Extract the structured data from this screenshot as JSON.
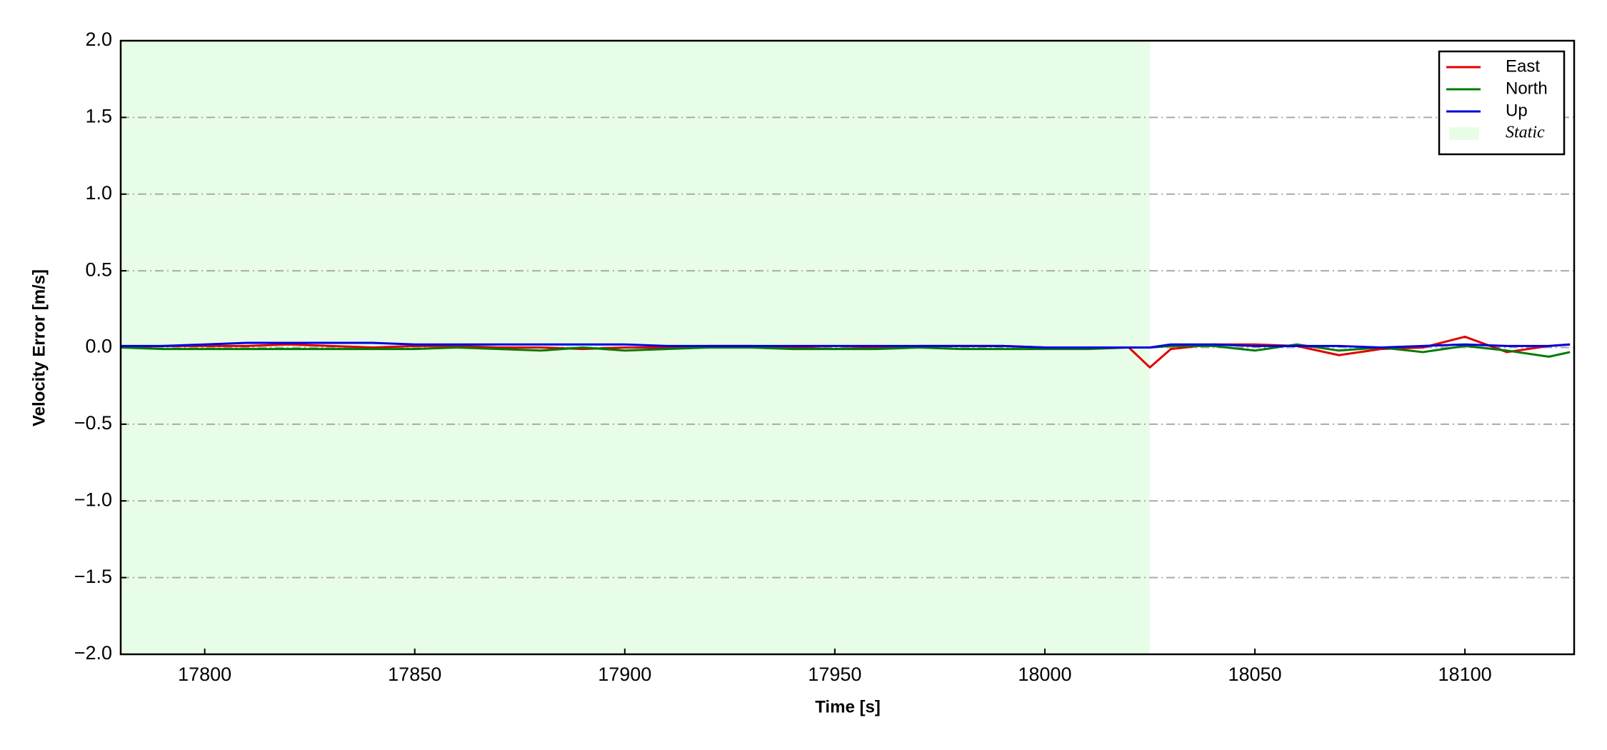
{
  "chart_data": {
    "type": "line",
    "x_label": "Time [s]",
    "y_label": "Velocity Error [m/s]",
    "x": [
      17780,
      17790,
      17800,
      17810,
      17820,
      17830,
      17840,
      17850,
      17860,
      17870,
      17880,
      17890,
      17900,
      17910,
      17920,
      17930,
      17940,
      17950,
      17960,
      17970,
      17980,
      17990,
      18000,
      18010,
      18020,
      18025,
      18030,
      18040,
      18050,
      18060,
      18070,
      18080,
      18090,
      18100,
      18110,
      18120,
      18125
    ],
    "series": [
      {
        "name": "East",
        "color": "#e00000",
        "values": [
          0.0,
          0.01,
          0.01,
          0.01,
          0.02,
          0.01,
          0.0,
          0.01,
          0.01,
          0.0,
          0.0,
          -0.01,
          0.0,
          0.0,
          0.01,
          0.01,
          0.0,
          -0.01,
          0.0,
          0.01,
          0.01,
          0.01,
          0.0,
          0.0,
          0.0,
          -0.13,
          -0.01,
          0.02,
          0.02,
          0.01,
          -0.05,
          -0.01,
          0.0,
          0.07,
          -0.03,
          0.01,
          0.02
        ]
      },
      {
        "name": "North",
        "color": "#007a00",
        "values": [
          0.0,
          -0.01,
          -0.01,
          -0.01,
          -0.01,
          -0.01,
          -0.01,
          -0.01,
          0.0,
          -0.01,
          -0.02,
          0.0,
          -0.02,
          -0.01,
          0.0,
          0.0,
          -0.01,
          -0.01,
          -0.01,
          0.0,
          -0.01,
          -0.01,
          -0.01,
          -0.01,
          0.0,
          0.0,
          0.01,
          0.01,
          -0.02,
          0.02,
          -0.02,
          0.0,
          -0.03,
          0.01,
          -0.02,
          -0.06,
          -0.03
        ]
      },
      {
        "name": "Up",
        "color": "#0000e0",
        "values": [
          0.01,
          0.01,
          0.02,
          0.03,
          0.03,
          0.03,
          0.03,
          0.02,
          0.02,
          0.02,
          0.02,
          0.02,
          0.02,
          0.01,
          0.01,
          0.01,
          0.01,
          0.01,
          0.01,
          0.01,
          0.01,
          0.01,
          0.0,
          0.0,
          0.0,
          0.0,
          0.02,
          0.02,
          0.01,
          0.01,
          0.01,
          0.0,
          0.01,
          0.02,
          0.01,
          0.01,
          0.02
        ]
      }
    ],
    "static": {
      "name": "Static",
      "color": "#e8fde8",
      "range": [
        17780,
        18025
      ]
    },
    "xlim": [
      17780,
      18126
    ],
    "xticks": [
      17800,
      17850,
      17900,
      17950,
      18000,
      18050,
      18100
    ],
    "ylim": [
      -2,
      2
    ],
    "yticks": [
      {
        "value": -2,
        "label": "−2.0"
      },
      {
        "value": -1.5,
        "label": "−1.5"
      },
      {
        "value": -1,
        "label": "−1.0"
      },
      {
        "value": -0.5,
        "label": "−0.5"
      },
      {
        "value": 0,
        "label": "0.0"
      },
      {
        "value": 0.5,
        "label": "0.5"
      },
      {
        "value": 1,
        "label": "1.0"
      },
      {
        "value": 1.5,
        "label": "1.5"
      },
      {
        "value": 2,
        "label": "2.0"
      }
    ],
    "grid": true,
    "legend": "upper right"
  }
}
